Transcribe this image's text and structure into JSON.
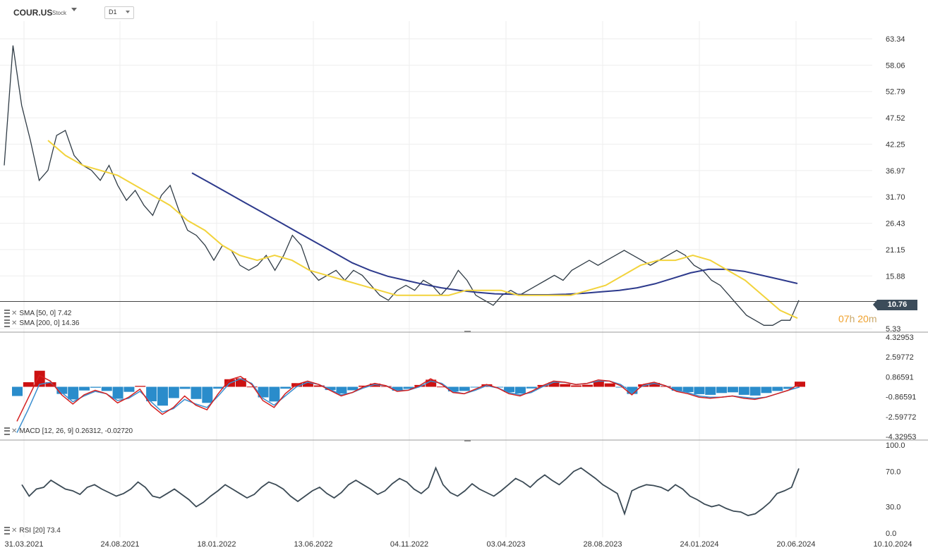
{
  "header": {
    "symbol": "COUR.US",
    "symbol_type": "Stock",
    "timeframe": "D1"
  },
  "price_panel": {
    "current_price": "10.76",
    "countdown_hours": "07",
    "countdown_hours_unit": "h",
    "countdown_minutes": "20",
    "countdown_minutes_unit": "m",
    "sma50_label": "SMA [50, 0] 7.42",
    "sma200_label": "SMA [200, 0] 14.36"
  },
  "macd_panel": {
    "label": "MACD [12, 26, 9] 0.26312, -0.02720"
  },
  "rsi_panel": {
    "label": "RSI [20] 73.4"
  },
  "colors": {
    "price": "#2f3b45",
    "sma50": "#f2d33c",
    "sma200": "#2d3a8c",
    "macd_line": "#d42020",
    "signal_line": "#3b8fd0",
    "hist_pos": "#cc1111",
    "hist_neg": "#2a8ccb",
    "rsi": "#3b4a55",
    "price_tag": "#3c4c5a",
    "countdown": "#f0a02a"
  },
  "chart_data": [
    {
      "type": "line",
      "name": "price",
      "y_ticks": [
        "63.34",
        "58.06",
        "52.79",
        "47.52",
        "42.25",
        "36.97",
        "31.70",
        "26.43",
        "21.15",
        "15.88",
        "5.33"
      ],
      "y_tick_values": [
        63.34,
        58.06,
        52.79,
        47.52,
        42.25,
        36.97,
        31.7,
        26.43,
        21.15,
        15.88,
        5.33
      ],
      "ylim": [
        5.33,
        63.34
      ],
      "x_ticks": [
        "31.03.2021",
        "24.08.2021",
        "18.01.2022",
        "13.06.2022",
        "04.11.2022",
        "03.04.2023",
        "28.08.2023",
        "24.01.2024",
        "20.06.2024",
        "10.10.2024"
      ],
      "current": 10.76,
      "series": [
        {
          "values": [
            38,
            62,
            50,
            43,
            35,
            37,
            44,
            45,
            40,
            38,
            37,
            35,
            38,
            34,
            31,
            33,
            30,
            28,
            32,
            34,
            29,
            25,
            24,
            22,
            19,
            22,
            21,
            18,
            17,
            18,
            20,
            17,
            20,
            24,
            22,
            17,
            15,
            16,
            17,
            15,
            17,
            16,
            14,
            12,
            11,
            13,
            14,
            13,
            15,
            14,
            12,
            14,
            17,
            15,
            12,
            11,
            10,
            12,
            13,
            12,
            13,
            14,
            15,
            16,
            15,
            17,
            18,
            19,
            18,
            19,
            20,
            21,
            20,
            19,
            18,
            19,
            20,
            21,
            20,
            18,
            17,
            15,
            14,
            12,
            10,
            8,
            7,
            6,
            6,
            7,
            7,
            11
          ]
        },
        {
          "name": "SMA [50, 0] 7.42",
          "values": [
            43,
            40,
            38,
            37,
            36,
            34,
            32,
            30,
            27,
            25,
            22,
            20,
            19,
            20,
            19,
            17,
            16,
            15,
            14,
            13,
            12,
            12,
            12,
            12,
            13,
            13,
            13,
            12,
            12,
            12,
            12,
            13,
            14,
            16,
            18,
            19,
            19,
            20,
            19,
            17,
            15,
            12,
            9,
            7.42
          ]
        },
        {
          "name": "SMA [200, 0] 14.36",
          "values": [
            36.5,
            34.5,
            32.5,
            30.5,
            28.5,
            26.5,
            24.5,
            22.5,
            20.5,
            18.5,
            17,
            15.8,
            15,
            14.2,
            13.5,
            13,
            12.6,
            12.3,
            12.2,
            12.1,
            12.1,
            12.2,
            12.4,
            12.7,
            13,
            13.5,
            14.3,
            15.4,
            16.5,
            17.2,
            17.2,
            16.8,
            16,
            15.2,
            14.36
          ]
        }
      ]
    },
    {
      "type": "bar",
      "name": "MACD",
      "y_ticks": [
        "4.32953",
        "2.59772",
        "0.86591",
        "-0.86591",
        "-2.59772",
        "-4.32953"
      ],
      "y_tick_values": [
        4.32953,
        2.59772,
        0.86591,
        -0.86591,
        -2.59772,
        -4.32953
      ],
      "ylim": [
        -4.32953,
        4.32953
      ],
      "series": [
        {
          "name": "MACD",
          "values": [
            -3,
            -1,
            1,
            0.5,
            -0.7,
            -1.5,
            -0.7,
            -0.3,
            -0.6,
            -1.4,
            -0.9,
            -0.2,
            -1.6,
            -2.4,
            -1.8,
            -0.8,
            -1.6,
            -2,
            -0.6,
            0.6,
            0.9,
            0.2,
            -1.2,
            -1.8,
            -0.6,
            0.2,
            0.5,
            0.2,
            -0.3,
            -0.8,
            -0.5,
            0,
            0.3,
            0.1,
            -0.4,
            -0.3,
            0.1,
            0.7,
            0.2,
            -0.5,
            -0.6,
            -0.2,
            0.2,
            -0.1,
            -0.6,
            -0.8,
            -0.4,
            0.1,
            0.5,
            0.4,
            0.2,
            0.3,
            0.6,
            0.5,
            0.1,
            -0.7,
            0.2,
            0.4,
            0.1,
            -0.4,
            -0.6,
            -0.9,
            -1,
            -0.9,
            -0.8,
            -1,
            -1.1,
            -0.9,
            -0.6,
            -0.3,
            0.26312
          ]
        },
        {
          "name": "Signal",
          "values": [
            -4,
            -2,
            0.2,
            0.4,
            -0.5,
            -1.3,
            -0.8,
            -0.4,
            -0.6,
            -1.2,
            -1,
            -0.4,
            -1.3,
            -2.2,
            -1.9,
            -1.1,
            -1.5,
            -1.8,
            -0.8,
            0.3,
            0.7,
            0.3,
            -1,
            -1.6,
            -0.8,
            0,
            0.4,
            0.2,
            -0.2,
            -0.7,
            -0.5,
            -0.1,
            0.2,
            0.1,
            -0.3,
            -0.3,
            0,
            0.5,
            0.3,
            -0.4,
            -0.6,
            -0.3,
            0.1,
            -0.1,
            -0.5,
            -0.7,
            -0.5,
            0,
            0.4,
            0.4,
            0.2,
            0.3,
            0.5,
            0.5,
            0.2,
            -0.5,
            0.1,
            0.3,
            0.1,
            -0.3,
            -0.5,
            -0.8,
            -0.9,
            -0.9,
            -0.8,
            -0.9,
            -1,
            -0.9,
            -0.6,
            -0.3,
            -0.0272
          ]
        }
      ]
    },
    {
      "type": "line",
      "name": "RSI",
      "y_ticks": [
        "100.0",
        "70.0",
        "30.0",
        "0.0"
      ],
      "y_tick_values": [
        100,
        70,
        30,
        0
      ],
      "ylim": [
        0,
        100
      ],
      "series": [
        {
          "name": "RSI [20] 73.4",
          "values": [
            55,
            42,
            50,
            52,
            60,
            55,
            50,
            48,
            44,
            52,
            55,
            50,
            46,
            42,
            45,
            50,
            58,
            52,
            42,
            40,
            45,
            50,
            44,
            38,
            30,
            35,
            42,
            48,
            55,
            50,
            45,
            40,
            44,
            52,
            58,
            55,
            50,
            42,
            36,
            42,
            48,
            52,
            45,
            40,
            46,
            55,
            60,
            55,
            50,
            44,
            48,
            56,
            62,
            58,
            50,
            45,
            52,
            74,
            55,
            46,
            42,
            48,
            56,
            50,
            46,
            42,
            48,
            55,
            62,
            58,
            52,
            60,
            66,
            60,
            55,
            62,
            70,
            74,
            68,
            62,
            55,
            50,
            45,
            22,
            48,
            52,
            55,
            54,
            52,
            48,
            55,
            50,
            42,
            38,
            33,
            30,
            32,
            28,
            25,
            24,
            20,
            22,
            28,
            35,
            45,
            48,
            52,
            73.4
          ]
        }
      ]
    }
  ]
}
